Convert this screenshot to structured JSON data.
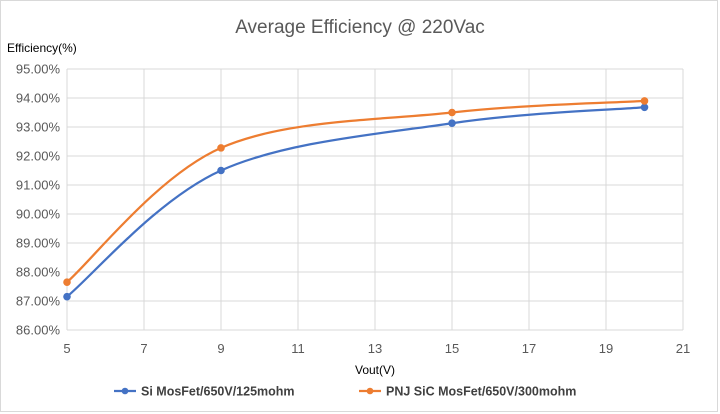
{
  "chart_data": {
    "type": "line",
    "title": "Average Efficiency @ 220Vac",
    "xlabel": "Vout(V)",
    "ylabel": "Efficiency(%)",
    "xlim": [
      5,
      21
    ],
    "ylim": [
      86.0,
      95.0
    ],
    "x_ticks": [
      "5",
      "7",
      "9",
      "11",
      "13",
      "15",
      "17",
      "19",
      "21"
    ],
    "y_ticks": [
      "86.00%",
      "87.00%",
      "88.00%",
      "89.00%",
      "90.00%",
      "91.00%",
      "92.00%",
      "93.00%",
      "94.00%",
      "95.00%"
    ],
    "grid": true,
    "smooth": true,
    "legend_position": "bottom",
    "series": [
      {
        "name": "Si MosFet/650V/125mohm",
        "color": "#4472C4",
        "x": [
          5,
          9,
          15,
          20
        ],
        "y": [
          87.15,
          91.5,
          93.13,
          93.68
        ]
      },
      {
        "name": "PNJ SiC MosFet/650V/300mohm",
        "color": "#ED7D31",
        "x": [
          5,
          9,
          15,
          20
        ],
        "y": [
          87.65,
          92.28,
          93.5,
          93.9
        ]
      }
    ]
  }
}
